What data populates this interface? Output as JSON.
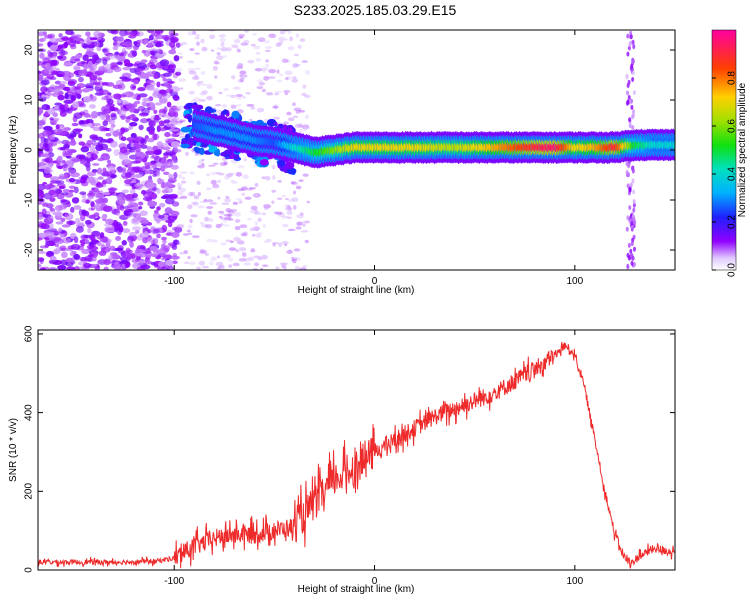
{
  "title": "S233.2025.185.03.29.E15",
  "colors": {
    "snr_line": "#ee2a2a",
    "ridge_low": "#00c8ff",
    "ridge_high": "#ff2020",
    "noise": "#6a00e0",
    "noise_light": "#c8a8ff"
  },
  "chart_data": [
    {
      "type": "heatmap",
      "title": "S233.2025.185.03.29.E15",
      "xlabel": "Height of straight line (km)",
      "ylabel": "Frequency (Hz)",
      "xlim": [
        -168,
        150
      ],
      "ylim": [
        -24,
        24
      ],
      "x_ticks": [
        -100,
        0,
        100
      ],
      "y_ticks": [
        -20,
        -10,
        0,
        10,
        20
      ],
      "grid": false,
      "colorbar": {
        "label": "Normalized spectral amplitude",
        "range": [
          0,
          1
        ],
        "ticks": [
          "0.0",
          "0.2",
          "0.4",
          "0.6",
          "0.8"
        ]
      },
      "ridge": {
        "x": [
          -90,
          -80,
          -70,
          -60,
          -50,
          -40,
          -30,
          -20,
          -10,
          0,
          20,
          40,
          60,
          80,
          90,
          100,
          110,
          120,
          130,
          140,
          150
        ],
        "frequency": [
          5,
          4,
          3,
          2,
          1.5,
          0.5,
          -0.5,
          0,
          0.5,
          0.5,
          0.5,
          0.5,
          0.5,
          0.5,
          0.5,
          0.5,
          0.5,
          0.5,
          1,
          1,
          1
        ],
        "amplitude": [
          0.25,
          0.3,
          0.3,
          0.3,
          0.25,
          0.4,
          0.5,
          0.6,
          0.7,
          0.7,
          0.7,
          0.65,
          0.75,
          0.9,
          0.95,
          0.7,
          0.75,
          0.9,
          0.5,
          0.4,
          0.4
        ]
      }
    },
    {
      "type": "line",
      "xlabel": "Height of straight line (km)",
      "ylabel": "SNR (10 * v/v)",
      "xlim": [
        -168,
        150
      ],
      "ylim": [
        0,
        610
      ],
      "x_ticks": [
        -100,
        0,
        100
      ],
      "y_ticks": [
        0,
        200,
        400,
        600
      ],
      "grid": false,
      "series": [
        {
          "x": [
            -168,
            -150,
            -130,
            -110,
            -100,
            -90,
            -80,
            -70,
            -60,
            -50,
            -40,
            -30,
            -20,
            -10,
            0,
            10,
            20,
            30,
            40,
            50,
            60,
            70,
            80,
            90,
            95,
            100,
            105,
            110,
            115,
            120,
            125,
            128,
            132,
            140,
            150
          ],
          "values": [
            20,
            20,
            20,
            22,
            30,
            60,
            80,
            90,
            90,
            100,
            110,
            170,
            230,
            260,
            300,
            330,
            360,
            390,
            410,
            430,
            450,
            480,
            510,
            545,
            570,
            550,
            460,
            330,
            200,
            90,
            30,
            15,
            35,
            55,
            45
          ]
        }
      ]
    }
  ]
}
